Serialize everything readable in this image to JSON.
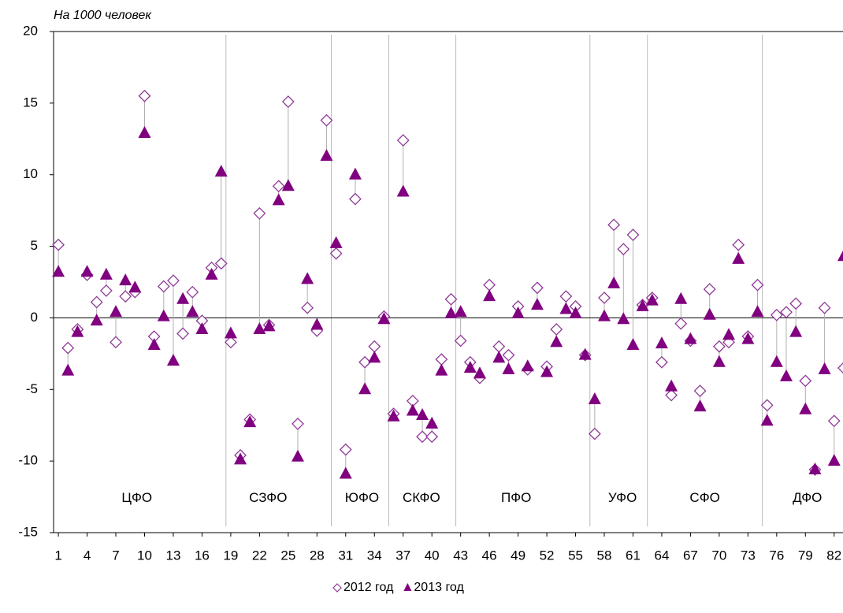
{
  "chart_data": {
    "type": "scatter",
    "annotation": "На 1000 человек",
    "x": [
      1,
      2,
      3,
      4,
      5,
      6,
      7,
      8,
      9,
      10,
      11,
      12,
      13,
      14,
      15,
      16,
      17,
      18,
      19,
      20,
      21,
      22,
      23,
      24,
      25,
      26,
      27,
      28,
      29,
      30,
      31,
      32,
      33,
      34,
      35,
      36,
      37,
      38,
      39,
      40,
      41,
      42,
      43,
      44,
      45,
      46,
      47,
      48,
      49,
      50,
      51,
      52,
      53,
      54,
      55,
      56,
      57,
      58,
      59,
      60,
      61,
      62,
      63,
      64,
      65,
      66,
      67,
      68,
      69,
      70,
      71,
      72,
      73,
      74,
      75,
      76,
      77,
      78,
      79,
      80,
      81,
      82,
      83
    ],
    "xlim": [
      0.5,
      83.5
    ],
    "xticks": [
      1,
      4,
      7,
      10,
      13,
      16,
      19,
      22,
      25,
      28,
      31,
      34,
      37,
      40,
      43,
      46,
      49,
      52,
      55,
      58,
      61,
      64,
      67,
      70,
      73,
      76,
      79,
      82
    ],
    "ylim": [
      -15,
      20
    ],
    "yticks": [
      -15,
      -10,
      -5,
      0,
      5,
      10,
      15,
      20
    ],
    "regions": [
      "ЦФО",
      "СЗФО",
      "ЮФО",
      "СКФО",
      "ПФО",
      "УФО",
      "СФО",
      "ДФО"
    ],
    "series": [
      {
        "name": "2012 год",
        "marker": "diamond-open",
        "color": "#8e3a96",
        "values": [
          5.1,
          -2.1,
          -0.8,
          3.0,
          1.1,
          1.9,
          -1.7,
          1.5,
          1.8,
          15.5,
          -1.3,
          2.2,
          2.6,
          -1.1,
          1.8,
          -0.2,
          3.5,
          3.8,
          -1.7,
          -9.6,
          -7.1,
          7.3,
          -0.5,
          9.2,
          15.1,
          -7.4,
          0.7,
          -0.9,
          13.8,
          4.5,
          -9.2,
          8.3,
          -3.1,
          -2.0,
          0.1,
          -6.7,
          12.4,
          -5.8,
          -8.3,
          -8.3,
          -2.9,
          1.3,
          -1.6,
          -3.1,
          -4.2,
          2.3,
          -2.0,
          -2.6,
          0.8,
          -3.6,
          2.1,
          -3.4,
          -0.8,
          1.5,
          0.8,
          -2.6,
          -8.1,
          1.4,
          6.5,
          4.8,
          5.8,
          0.9,
          1.4,
          -3.1,
          -5.4,
          -0.4,
          -1.6,
          -5.1,
          2.0,
          -2.0,
          -1.7,
          5.1,
          -1.3,
          2.3,
          -6.1,
          0.2,
          0.4,
          1.0,
          -4.4,
          -10.6,
          0.7,
          -7.2,
          -3.5
        ]
      },
      {
        "name": "2013 год",
        "marker": "triangle",
        "color": "#800080",
        "values": [
          3.2,
          -3.7,
          -1.0,
          3.2,
          -0.2,
          3.0,
          0.4,
          2.6,
          2.1,
          12.9,
          -1.9,
          0.1,
          -3.0,
          1.3,
          0.4,
          -0.8,
          3.0,
          10.2,
          -1.1,
          -9.9,
          -7.3,
          -0.8,
          -0.6,
          8.2,
          9.2,
          -9.7,
          2.7,
          -0.5,
          11.3,
          5.2,
          -10.9,
          10.0,
          -5.0,
          -2.8,
          -0.1,
          -6.9,
          8.8,
          -6.5,
          -6.8,
          -7.4,
          -3.7,
          0.3,
          0.4,
          -3.5,
          -3.9,
          1.5,
          -2.8,
          -3.6,
          0.3,
          -3.4,
          0.9,
          -3.8,
          -1.7,
          0.6,
          0.3,
          -2.6,
          -5.7,
          0.1,
          2.4,
          -0.1,
          -1.9,
          0.8,
          1.2,
          -1.8,
          -4.8,
          1.3,
          -1.5,
          -6.2,
          0.2,
          -3.1,
          -1.2,
          4.1,
          -1.5,
          0.4,
          -7.2,
          -3.1,
          -4.1,
          -1.0,
          -6.4,
          -10.6,
          -3.6,
          -10.0,
          4.3
        ]
      }
    ]
  }
}
